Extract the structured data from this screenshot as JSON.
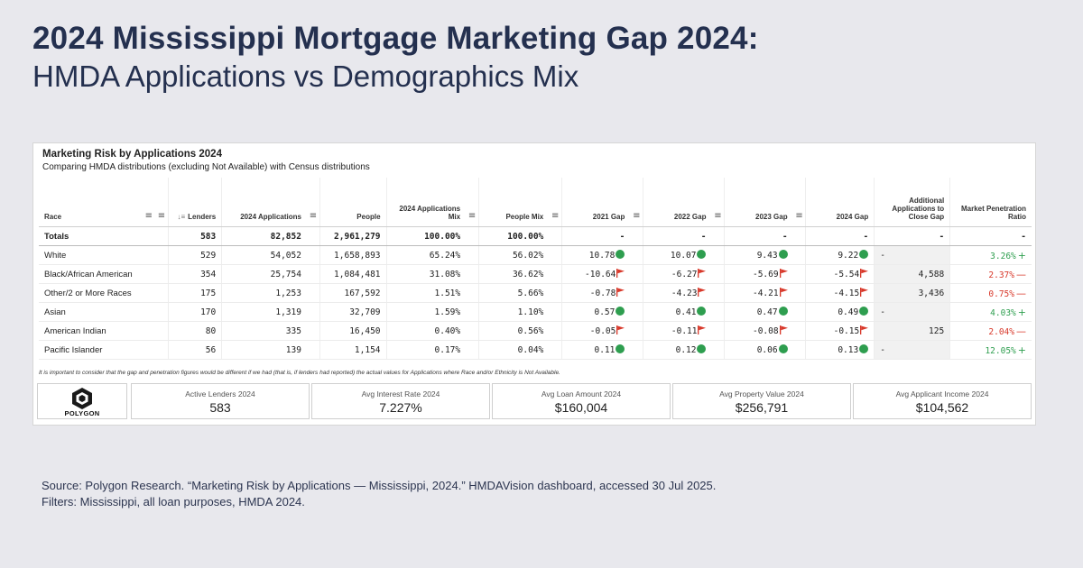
{
  "header": {
    "title": "2024 Mississippi Mortgage Marketing Gap 2024:",
    "subtitle": "HMDA Applications vs Demographics Mix"
  },
  "panel": {
    "title": "Marketing Risk by Applications 2024",
    "subtitle": "Comparing HMDA distributions (excluding Not Available) with Census distributions",
    "columns": {
      "race": "Race",
      "lenders": "Lenders",
      "applications": "2024 Applications",
      "people": "People",
      "applications_mix": "2024 Applications Mix",
      "people_mix": "People Mix",
      "gap_2021": "2021 Gap",
      "gap_2022": "2022 Gap",
      "gap_2023": "2023 Gap",
      "gap_2024": "2024 Gap",
      "additional": "Additional Applications to Close Gap",
      "penetration": "Market Penetration Ratio"
    },
    "totals": {
      "label": "Totals",
      "lenders": "583",
      "applications": "82,852",
      "people": "2,961,279",
      "applications_mix": "100.00%",
      "people_mix": "100.00%",
      "gap_2021": "-",
      "gap_2022": "-",
      "gap_2023": "-",
      "gap_2024": "-",
      "additional": "-",
      "penetration": "-"
    },
    "rows": [
      {
        "race": "White",
        "lenders": "529",
        "applications": "54,052",
        "people": "1,658,893",
        "applications_mix": "65.24%",
        "people_mix": "56.02%",
        "gap_2021": "10.78",
        "gap_2022": "10.07",
        "gap_2023": "9.43",
        "gap_2024": "9.22",
        "additional": "-",
        "penetration": "3.26%"
      },
      {
        "race": "Black/African American",
        "lenders": "354",
        "applications": "25,754",
        "people": "1,084,481",
        "applications_mix": "31.08%",
        "people_mix": "36.62%",
        "gap_2021": "-10.64",
        "gap_2022": "-6.27",
        "gap_2023": "-5.69",
        "gap_2024": "-5.54",
        "additional": "4,588",
        "penetration": "2.37%"
      },
      {
        "race": "Other/2 or More Races",
        "lenders": "175",
        "applications": "1,253",
        "people": "167,592",
        "applications_mix": "1.51%",
        "people_mix": "5.66%",
        "gap_2021": "-0.78",
        "gap_2022": "-4.23",
        "gap_2023": "-4.21",
        "gap_2024": "-4.15",
        "additional": "3,436",
        "penetration": "0.75%"
      },
      {
        "race": "Asian",
        "lenders": "170",
        "applications": "1,319",
        "people": "32,709",
        "applications_mix": "1.59%",
        "people_mix": "1.10%",
        "gap_2021": "0.57",
        "gap_2022": "0.41",
        "gap_2023": "0.47",
        "gap_2024": "0.49",
        "additional": "-",
        "penetration": "4.03%"
      },
      {
        "race": "American Indian",
        "lenders": "80",
        "applications": "335",
        "people": "16,450",
        "applications_mix": "0.40%",
        "people_mix": "0.56%",
        "gap_2021": "-0.05",
        "gap_2022": "-0.11",
        "gap_2023": "-0.08",
        "gap_2024": "-0.15",
        "additional": "125",
        "penetration": "2.04%"
      },
      {
        "race": "Pacific Islander",
        "lenders": "56",
        "applications": "139",
        "people": "1,154",
        "applications_mix": "0.17%",
        "people_mix": "0.04%",
        "gap_2021": "0.11",
        "gap_2022": "0.12",
        "gap_2023": "0.06",
        "gap_2024": "0.13",
        "additional": "-",
        "penetration": "12.05%"
      }
    ],
    "footnote": "It is important to consider that the gap and penetration figures would be different if we had (that is, if lenders had reported) the actual values for Applications where Race and/or Ethnicity is Not Available.",
    "logo_text": "POLYGON",
    "kpis": [
      {
        "label": "Active Lenders 2024",
        "value": "583"
      },
      {
        "label": "Avg Interest Rate 2024",
        "value": "7.227%"
      },
      {
        "label": "Avg Loan Amount 2024",
        "value": "$160,004"
      },
      {
        "label": "Avg Property Value 2024",
        "value": "$256,791"
      },
      {
        "label": "Avg Applicant Income 2024",
        "value": "$104,562"
      }
    ]
  },
  "source": {
    "line1": "Source: Polygon Research. “Marketing Risk by Applications — Mississippi, 2024.” HMDAVision dashboard, accessed 30 Jul 2025.",
    "line2": "Filters: Mississippi, all loan purposes, HMDA 2024."
  },
  "colors": {
    "good": "#2e9e4f",
    "bad": "#d8382a",
    "title": "#24304f"
  }
}
